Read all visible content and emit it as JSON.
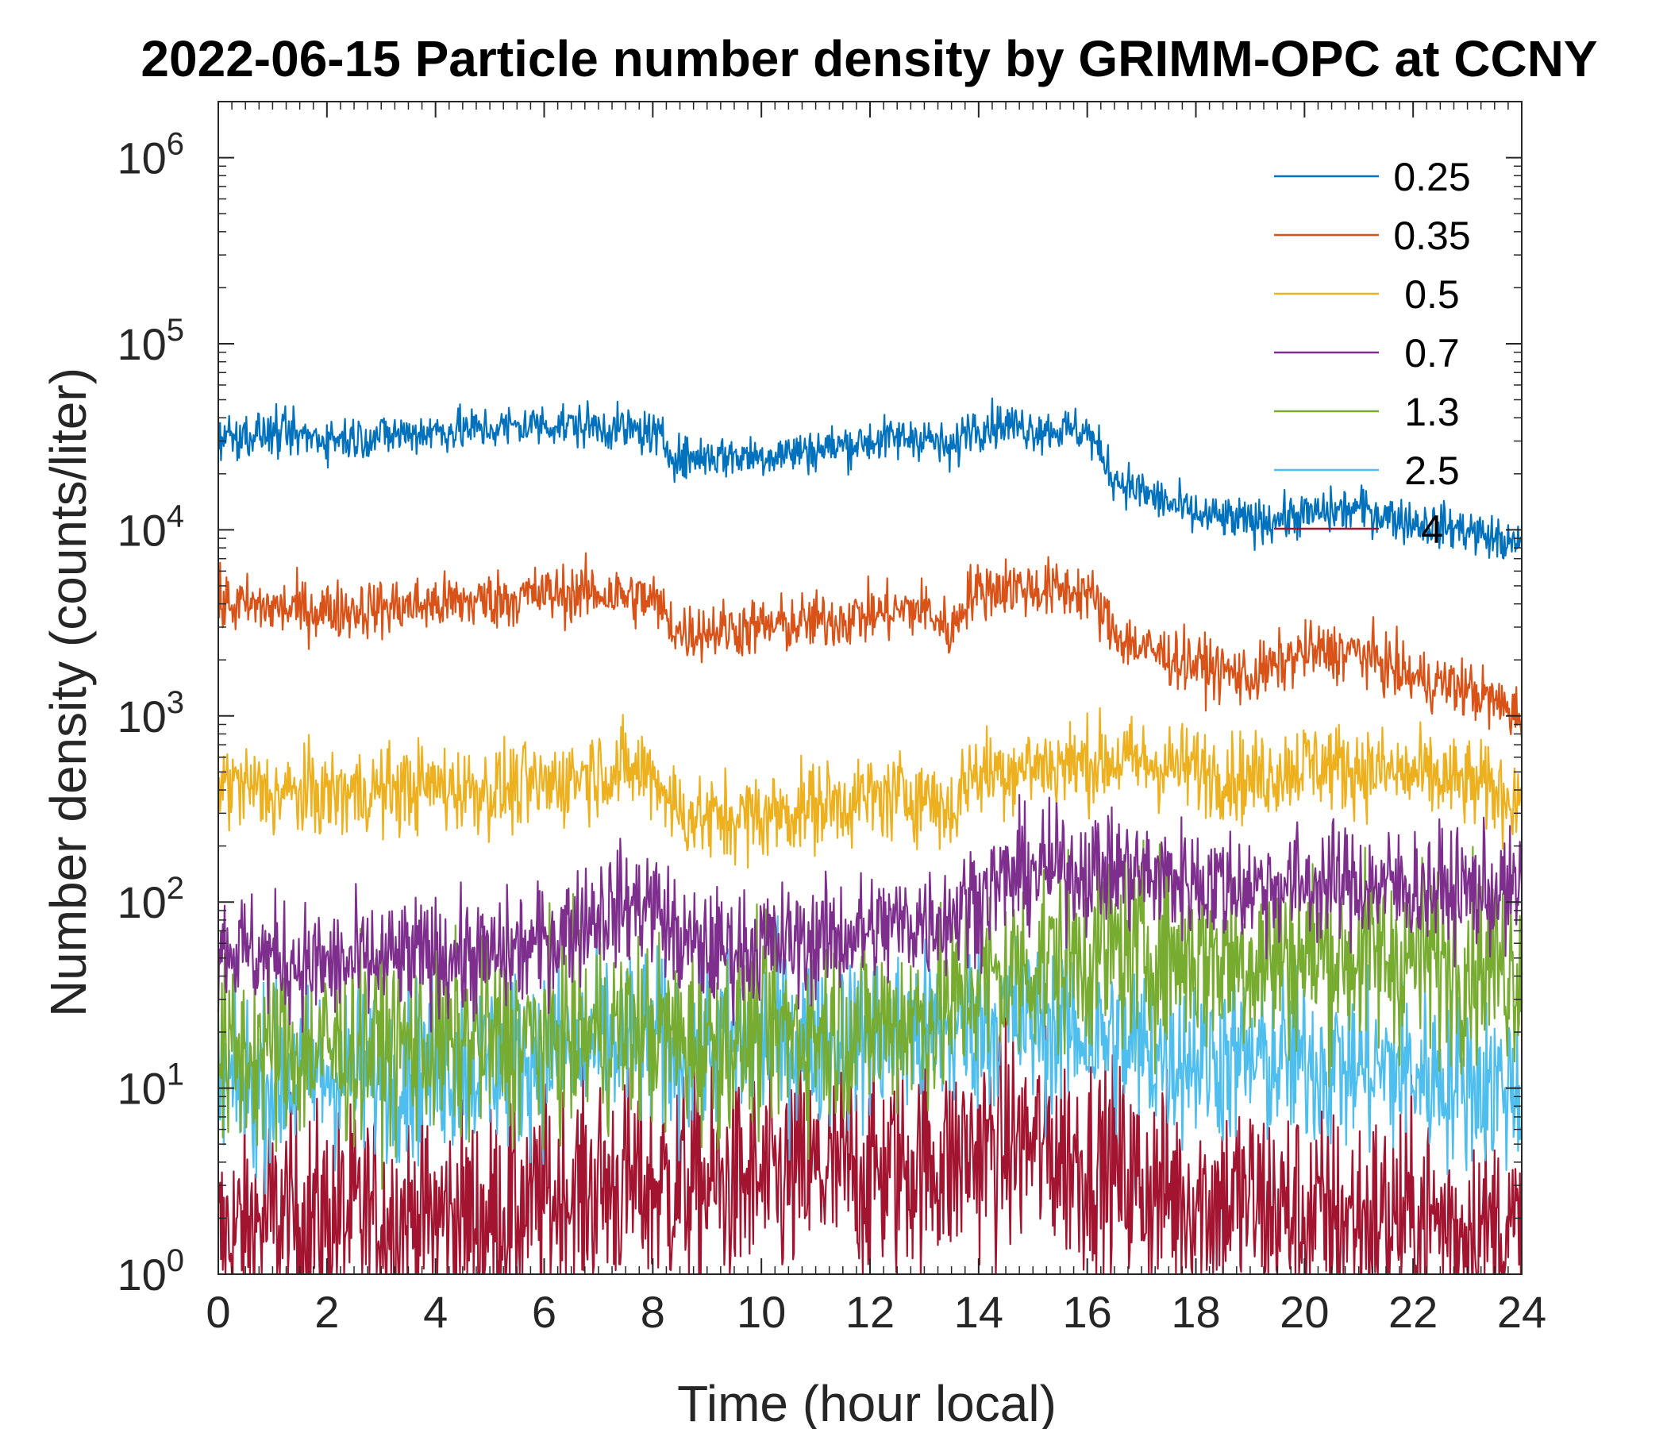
{
  "chart_data": {
    "type": "line",
    "title": "2022-06-15 Particle number density by GRIMM-OPC at CCNY",
    "xlabel": "Time (hour local)",
    "ylabel": "Number density (counts/liter)",
    "xlim": [
      0,
      24
    ],
    "ylim": [
      1,
      2000000
    ],
    "yscale": "log",
    "xticks": [
      0,
      2,
      4,
      6,
      8,
      10,
      12,
      14,
      16,
      18,
      20,
      22,
      24
    ],
    "xtick_labels": [
      "0",
      "2",
      "4",
      "6",
      "8",
      "10",
      "12",
      "14",
      "16",
      "18",
      "20",
      "22",
      "24"
    ],
    "yticks": [
      1,
      10,
      100,
      1000,
      10000,
      100000,
      1000000
    ],
    "ytick_exponents": [
      "0",
      "1",
      "2",
      "3",
      "4",
      "5",
      "6"
    ],
    "ytick_base": "10",
    "legend_location": "top-right",
    "x": [
      0,
      1,
      2,
      3,
      4,
      5,
      6,
      7,
      8,
      8.5,
      9,
      10,
      11,
      12,
      13,
      13.5,
      13.8,
      14.5,
      15,
      16,
      16.5,
      17,
      18,
      19,
      20,
      21,
      22,
      23,
      24
    ],
    "series": [
      {
        "name": "0.25",
        "color": "#0072BD",
        "noise": 0.06,
        "values": [
          32000,
          33000,
          31000,
          32000,
          34000,
          35000,
          37000,
          36000,
          33000,
          24000,
          25000,
          25000,
          27000,
          30000,
          32000,
          26000,
          36000,
          37000,
          35000,
          34000,
          19000,
          16000,
          12000,
          11000,
          12000,
          13000,
          11000,
          10000,
          8000
        ]
      },
      {
        "name": "0.35",
        "color": "#D95319",
        "noise": 0.08,
        "values": [
          4000,
          3800,
          3700,
          3800,
          4000,
          4200,
          4500,
          4600,
          4200,
          2800,
          2900,
          3000,
          3200,
          3500,
          3800,
          2800,
          4500,
          5000,
          4800,
          4700,
          2800,
          2300,
          1900,
          1600,
          2200,
          2200,
          1600,
          1400,
          1000
        ]
      },
      {
        "name": "0.5",
        "color": "#EDB120",
        "noise": 0.12,
        "values": [
          450,
          380,
          380,
          400,
          420,
          400,
          420,
          520,
          500,
          300,
          280,
          290,
          330,
          360,
          380,
          300,
          480,
          520,
          540,
          560,
          580,
          560,
          520,
          460,
          560,
          520,
          480,
          430,
          360
        ]
      },
      {
        "name": "0.7",
        "color": "#7E2F8E",
        "noise": 0.16,
        "values": [
          60,
          50,
          45,
          48,
          52,
          50,
          60,
          90,
          100,
          60,
          55,
          58,
          62,
          70,
          80,
          85,
          100,
          130,
          150,
          150,
          150,
          140,
          130,
          120,
          125,
          125,
          120,
          115,
          110
        ]
      },
      {
        "name": "1.3",
        "color": "#77AC30",
        "noise": 0.26,
        "values": [
          14,
          16,
          16,
          17,
          17,
          18,
          18,
          20,
          20,
          18,
          18,
          20,
          20,
          22,
          24,
          26,
          35,
          40,
          48,
          52,
          55,
          55,
          52,
          50,
          52,
          52,
          50,
          48,
          45
        ]
      },
      {
        "name": "2.5",
        "color": "#4DBEEE",
        "noise": 0.24,
        "values": [
          10,
          11,
          12,
          12,
          13,
          14,
          15,
          17,
          18,
          16,
          16,
          18,
          18,
          18,
          19,
          20,
          22,
          24,
          22,
          20,
          18,
          16,
          15,
          14,
          14,
          13,
          12,
          11,
          10
        ]
      },
      {
        "name": "4",
        "color": "#A2142F",
        "noise": 0.3,
        "values": [
          1.5,
          2,
          2,
          2,
          2,
          2,
          2.5,
          3,
          3,
          3,
          3,
          3,
          3.5,
          3.5,
          4,
          4,
          4.5,
          5,
          5,
          4,
          3.5,
          3,
          2.5,
          2.5,
          2,
          2,
          2,
          1.8,
          1.5
        ]
      }
    ]
  }
}
